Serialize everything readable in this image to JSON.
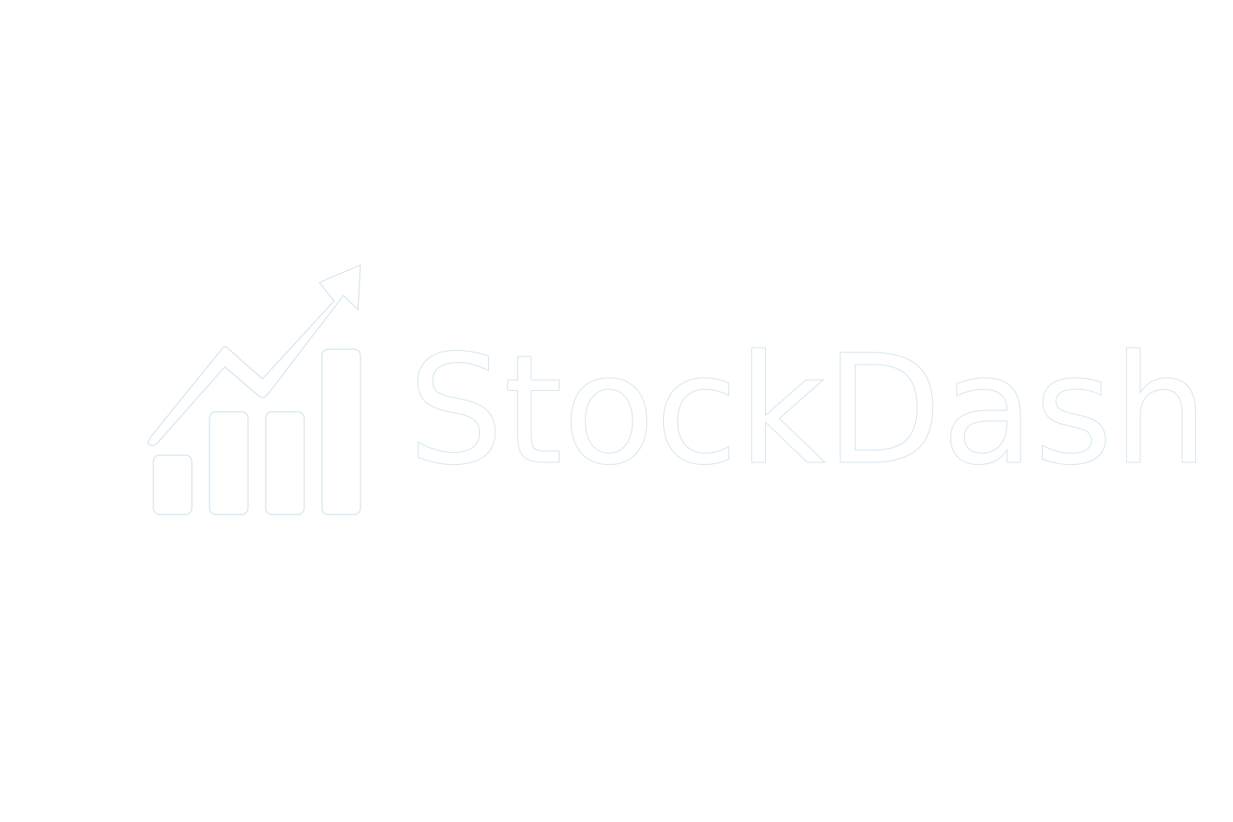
{
  "logo": {
    "icon": "growth-chart-icon",
    "wordmark": "StockDash"
  },
  "colors": {
    "background": "#ffffff",
    "fill": "#ffffff",
    "outline": "#cfe3ef"
  }
}
